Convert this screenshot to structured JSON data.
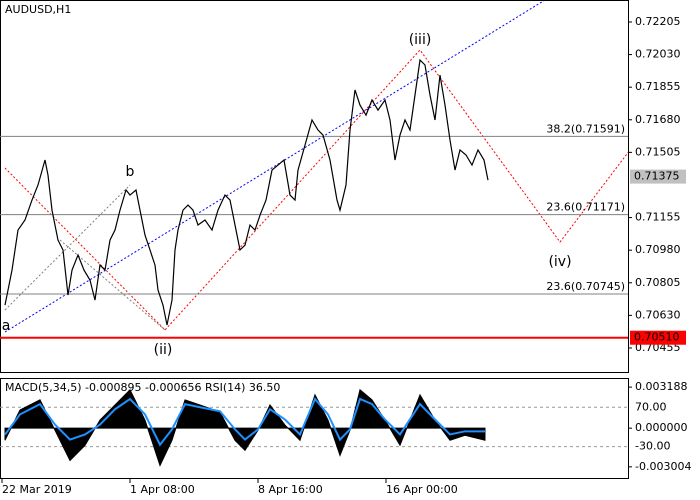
{
  "chart_data": [
    {
      "type": "line",
      "title": "AUDUSD,H1",
      "color": "#000000",
      "x": [
        5,
        12,
        18,
        25,
        32,
        38,
        45,
        48,
        52,
        58,
        63,
        68,
        72,
        78,
        84,
        90,
        95,
        100,
        105,
        110,
        115,
        120,
        126,
        130,
        136,
        140,
        145,
        150,
        155,
        158,
        163,
        167,
        172,
        175,
        178,
        183,
        188,
        193,
        198,
        205,
        212,
        218,
        225,
        230,
        235,
        240,
        245,
        250,
        255,
        260,
        266,
        272,
        278,
        284,
        290,
        295,
        298,
        305,
        312,
        318,
        323,
        330,
        337,
        340,
        346,
        350,
        355,
        360,
        366,
        372,
        378,
        385,
        390,
        395,
        400,
        405,
        410,
        415,
        420,
        425,
        430,
        435,
        440,
        445,
        450,
        455,
        460,
        466,
        472,
        478,
        484,
        488
      ],
      "values": [
        0.70685,
        0.70873,
        0.71088,
        0.71142,
        0.71249,
        0.7133,
        0.71464,
        0.71383,
        0.71195,
        0.71034,
        0.70981,
        0.70739,
        0.70873,
        0.70954,
        0.70873,
        0.70819,
        0.70712,
        0.709,
        0.70873,
        0.71034,
        0.71088,
        0.71195,
        0.71303,
        0.71276,
        0.71303,
        0.71195,
        0.71061,
        0.70981,
        0.709,
        0.70766,
        0.70685,
        0.70578,
        0.70712,
        0.70981,
        0.71088,
        0.71195,
        0.71222,
        0.71195,
        0.71115,
        0.71142,
        0.71088,
        0.71195,
        0.71276,
        0.71249,
        0.71115,
        0.70981,
        0.71007,
        0.71115,
        0.71088,
        0.71168,
        0.71249,
        0.7141,
        0.71437,
        0.71464,
        0.71276,
        0.71249,
        0.7141,
        0.71544,
        0.71679,
        0.71625,
        0.71598,
        0.71464,
        0.71249,
        0.71195,
        0.7133,
        0.71625,
        0.7184,
        0.71759,
        0.71705,
        0.71786,
        0.71732,
        0.71786,
        0.71679,
        0.71464,
        0.71598,
        0.71679,
        0.71625,
        0.71813,
        0.72001,
        0.71974,
        0.71813,
        0.71679,
        0.7192,
        0.71759,
        0.71571,
        0.7141,
        0.71518,
        0.71491,
        0.71437,
        0.71518,
        0.71464,
        0.71356
      ],
      "xlim": [
        0,
        628
      ],
      "xticks": [
        {
          "value": 2,
          "label": "22 Mar 2019"
        },
        {
          "value": 130,
          "label": "1 Apr 08:00"
        },
        {
          "value": 258,
          "label": "8 Apr 16:00"
        },
        {
          "value": 386,
          "label": "16 Apr 00:00"
        }
      ],
      "ylim": [
        0.70326,
        0.72323
      ],
      "yticks": [
        0.72205,
        {
          "value": 0.7203,
          "label": "0.72030"
        },
        0.71855,
        {
          "value": 0.7168,
          "label": "0.71680"
        },
        0.71505,
        0.71155,
        {
          "value": 0.7098,
          "label": "0.70980"
        },
        0.70805,
        {
          "value": 0.7063,
          "label": "0.70630"
        },
        0.70455
      ],
      "levels": [
        {
          "value": 0.71591,
          "label": "38.2(0.71591)",
          "color": "#808080"
        },
        {
          "value": 0.71171,
          "label": "23.6(0.71171)",
          "color": "#808080"
        },
        {
          "value": 0.70745,
          "label": "23.6(0.70745)",
          "color": "#808080"
        }
      ],
      "price_marks": [
        {
          "value": 0.71375,
          "label": "0.71375",
          "color": "#c0c0c0",
          "line": false
        },
        {
          "value": 0.7051,
          "label": "0.70510",
          "color": "#ff0000",
          "line": true
        }
      ],
      "annotations": [
        "(iii)",
        "(ii)",
        "(iv)",
        "b",
        "a"
      ]
    },
    {
      "type": "macd",
      "title": "MACD(5,34,5) -0.000895 -0.000656 RSI(14) 36.50",
      "x": [
        5,
        20,
        40,
        55,
        70,
        85,
        100,
        115,
        130,
        145,
        160,
        172,
        185,
        200,
        220,
        235,
        245,
        258,
        270,
        285,
        300,
        315,
        328,
        340,
        350,
        360,
        372,
        385,
        400,
        420,
        435,
        450,
        465,
        485
      ],
      "series": [
        {
          "color": "#000000",
          "values": [
            -0.00094,
            0.00141,
            0.0022,
            -0.00016,
            -0.00251,
            -0.00133,
            0.00063,
            0.0018,
            0.00298,
            0.00063,
            -0.0029,
            -0.00094,
            0.0022,
            0.0018,
            0.00125,
            -0.00094,
            -0.00172,
            -0.00016,
            0.0018,
            0.00024,
            -0.00094,
            0.00259,
            0.00063,
            -0.00212,
            -0.00016,
            0.00298,
            0.0022,
            0.00063,
            -0.00133,
            0.00259,
            0.00063,
            -0.00094,
            -0.00055,
            -0.00094
          ]
        },
        {
          "color": "#1e90ff",
          "axis": "y2",
          "values": [
            0.8,
            52,
            78,
            26,
            -12,
            1,
            26,
            65,
            91,
            52,
            -25,
            14,
            78,
            70,
            60,
            14,
            -12,
            14,
            65,
            39,
            1,
            91,
            52,
            -12,
            14,
            91,
            78,
            39,
            1,
            78,
            39,
            1,
            9,
            9
          ]
        }
      ],
      "xlim": [
        0,
        628
      ],
      "ylim": [
        -0.00387,
        0.00382
      ],
      "yticks": [
        0.003188,
        {
          "value": 0,
          "label": "0.000000"
        },
        -0.003004
      ],
      "y2lim": [
        -109.5,
        141.8
      ],
      "y2ticks": [
        {
          "value": 70,
          "label": "70.00"
        },
        {
          "value": -30,
          "label": "-30.00"
        }
      ]
    }
  ]
}
